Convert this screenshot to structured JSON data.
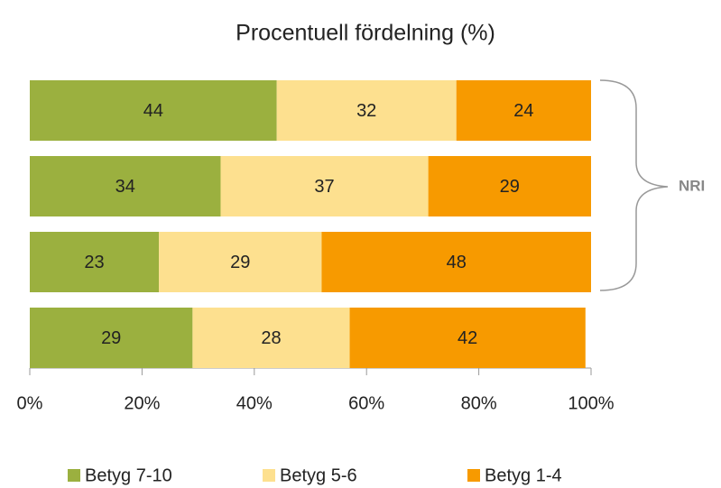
{
  "chart_data": {
    "type": "stacked-barh",
    "title": "Procentuell fördelning (%)",
    "categories": [
      null,
      null,
      null,
      null
    ],
    "series": [
      {
        "name": "Betyg 7-10",
        "color": "#9bb03f",
        "values": [
          44,
          34,
          23,
          29
        ]
      },
      {
        "name": "Betyg 5-6",
        "color": "#fde08f",
        "values": [
          32,
          37,
          29,
          28
        ]
      },
      {
        "name": "Betyg 1-4",
        "color": "#f79a00",
        "values": [
          24,
          29,
          48,
          42
        ]
      }
    ],
    "xlim": [
      0,
      100
    ],
    "xticks": [
      {
        "value": 0,
        "label": "0%"
      },
      {
        "value": 20,
        "label": "20%"
      },
      {
        "value": 40,
        "label": "40%"
      },
      {
        "value": 60,
        "label": "60%"
      },
      {
        "value": 80,
        "label": "80%"
      },
      {
        "value": 100,
        "label": "100%"
      }
    ],
    "annotation": "NRI",
    "legend": "bottom"
  }
}
